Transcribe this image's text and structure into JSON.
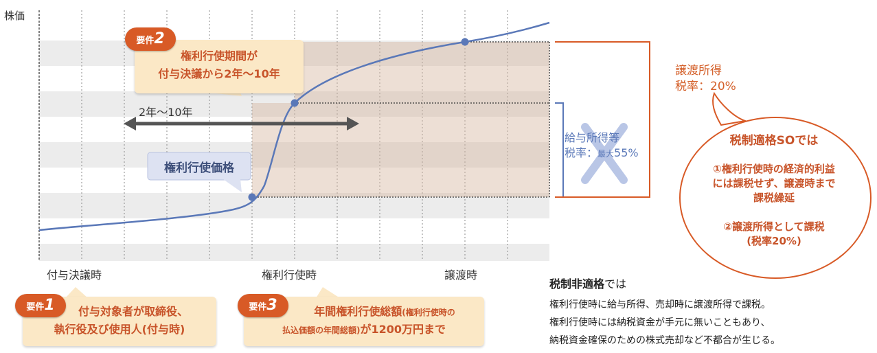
{
  "y_axis_label": "株価",
  "x_labels": {
    "grant": "付与決議時",
    "exercise": "権利行使時",
    "transfer": "譲渡時"
  },
  "period_label": "2年〜10年",
  "exercise_price_label": "権利行使価格",
  "salary_income": {
    "line1": "給与所得等",
    "line2_prefix": "税率：",
    "line2_small": "最大",
    "line2_value": "55%"
  },
  "transfer_income": {
    "line1": "譲渡所得",
    "line2": "税率：20%"
  },
  "requirement_2": {
    "badge_prefix": "要件",
    "badge_number": "2",
    "line1": "権利行使期間が",
    "line2": "付与決議から2年〜10年"
  },
  "requirement_1": {
    "badge_prefix": "要件",
    "badge_number": "1",
    "line1": "付与対象者が取締役、",
    "line2": "執行役及び使用人(付与時)"
  },
  "requirement_3": {
    "badge_prefix": "要件",
    "badge_number": "3",
    "line1_main": "年間権利行使総額",
    "line1_small": "(権利行使時の",
    "line2_small": "払込価額の年間総額)",
    "line2_main": "が1200万円まで"
  },
  "qualified": {
    "title": "税制適格SOでは",
    "item1_line1": "①権利行使時の経済的利益",
    "item1_line2": "には課税せず、譲渡時まで",
    "item1_line3": "課税繰延",
    "item2_line1": "②譲渡所得として課税",
    "item2_line2": "(税率20%)"
  },
  "non_qualified": {
    "title_bold": "税制非適格",
    "title_rest": "では",
    "line1": "権利行使時に給与所得、売却時に譲渡所得で課税。",
    "line2": "権利行使時には納税資金が手元に無いこともあり、",
    "line3": "納税資金確保のための株式売却など不都合が生じる。"
  },
  "colors": {
    "orange": "#d85a26",
    "blue_line": "#5a78b8",
    "card_fill": "#fbe8c6",
    "price_box": "#dde2f2"
  },
  "icons": {
    "cross": "large-x-cross-icon",
    "arrow": "double-headed-arrow-icon"
  }
}
